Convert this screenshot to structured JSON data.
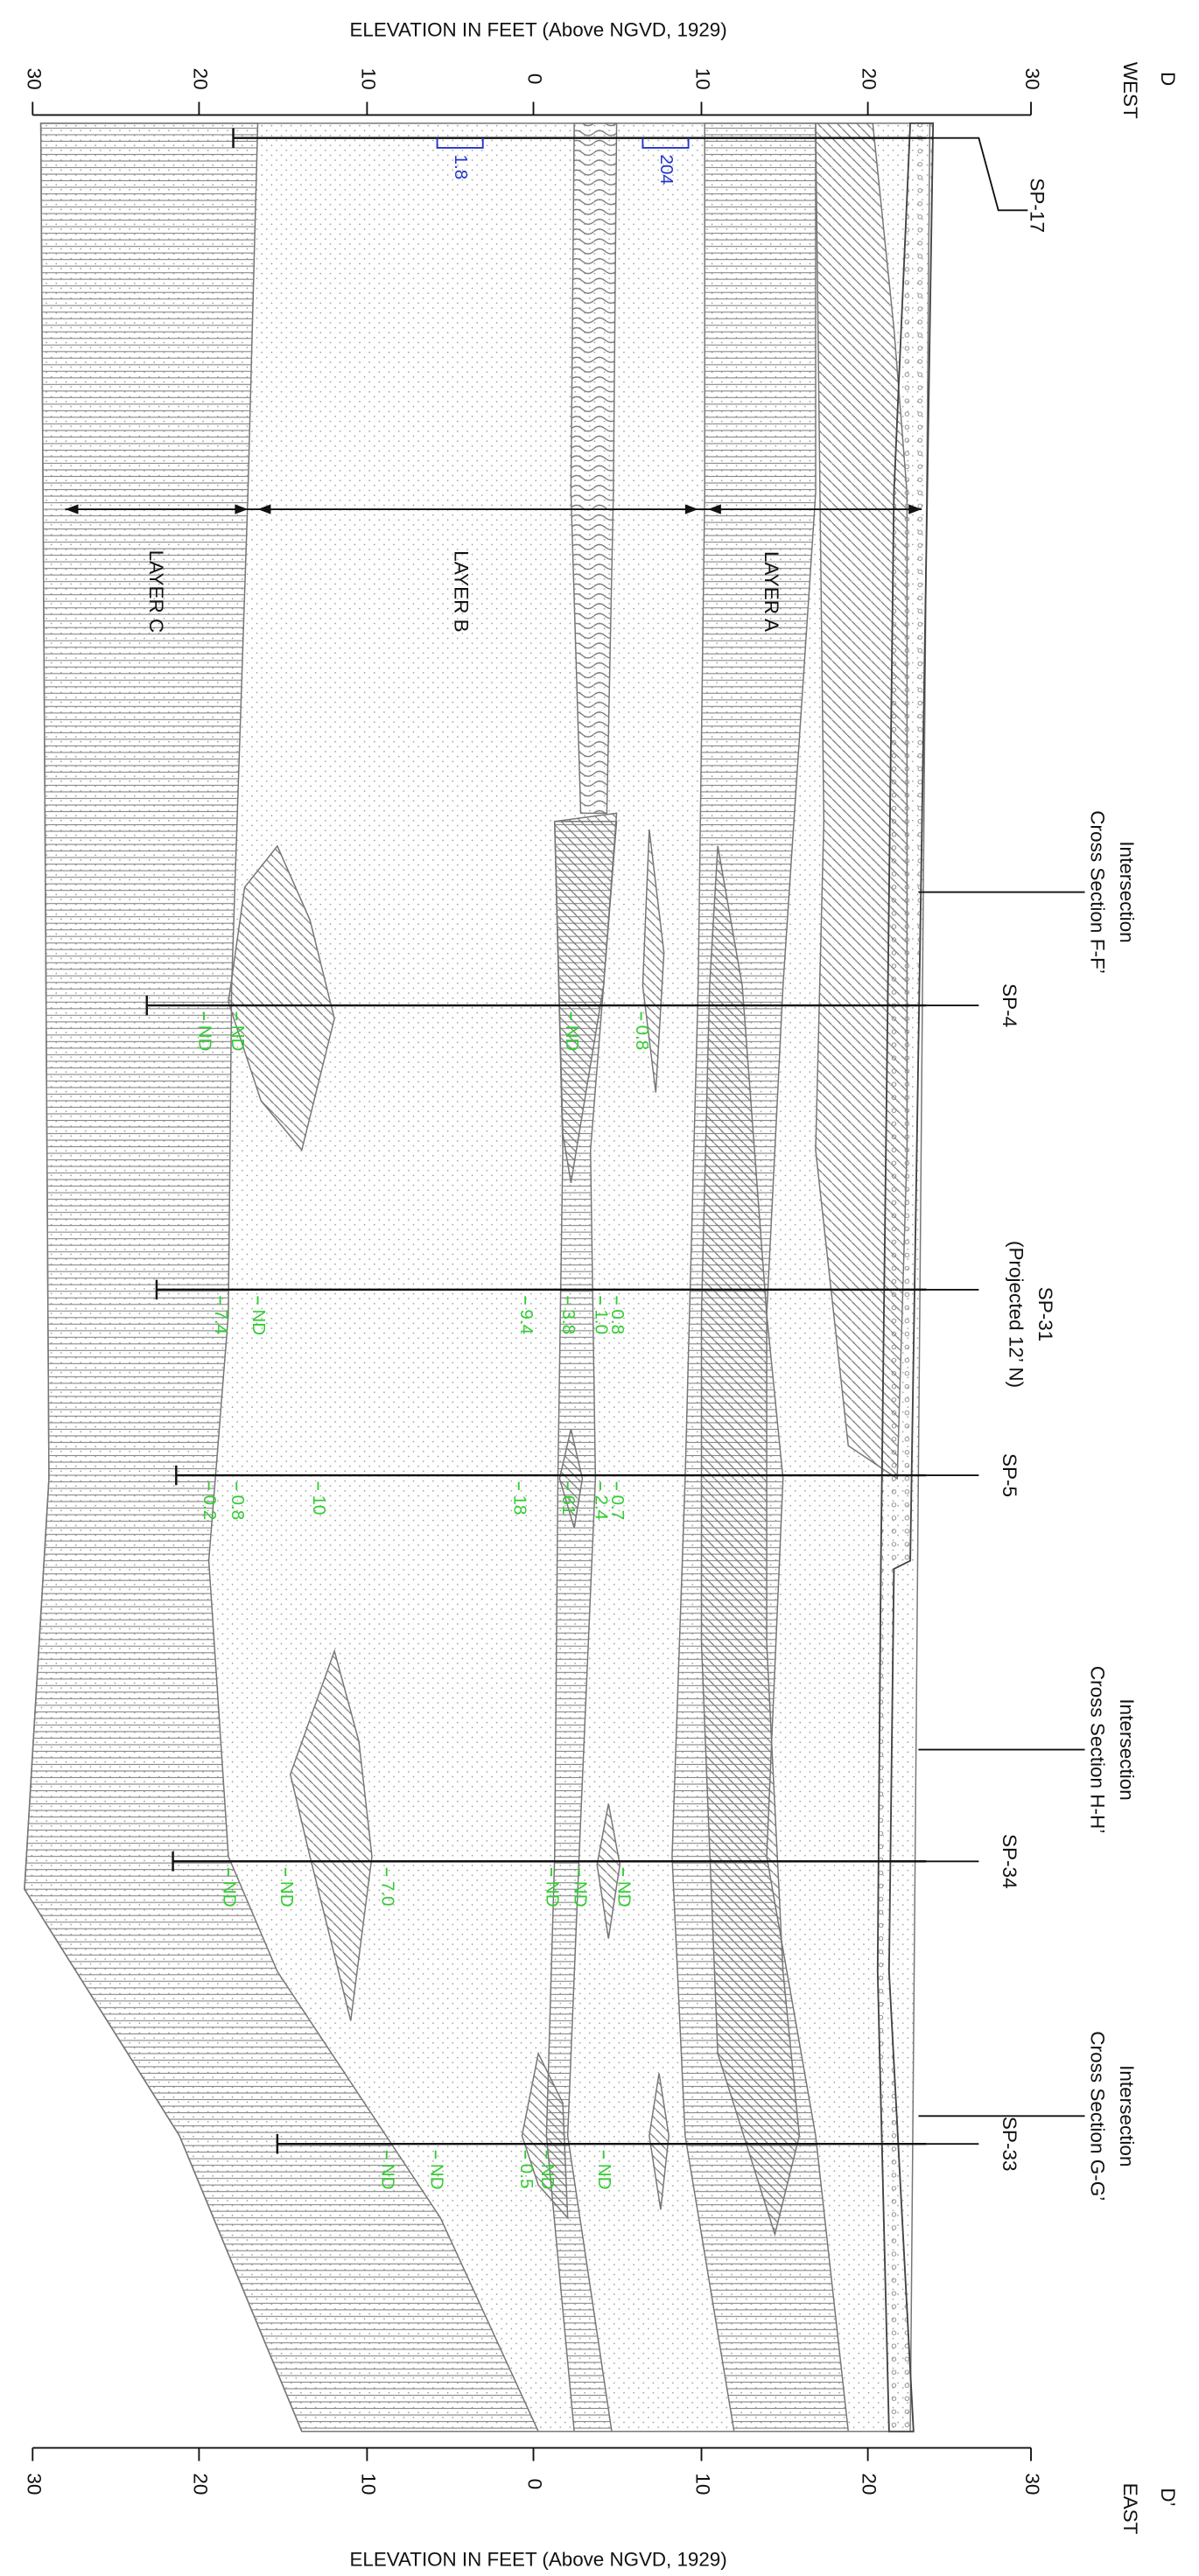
{
  "axis_title": "ELEVATION IN FEET (Above NGVD, 1929)",
  "ticks": [
    "30",
    "20",
    "10",
    "0",
    "10",
    "20",
    "30"
  ],
  "ends": {
    "top": {
      "letter": "D",
      "side": "WEST"
    },
    "bottom": {
      "letter": "D’",
      "side": "EAST"
    }
  },
  "layers": [
    "LAYER C",
    "LAYER B",
    "LAYER A"
  ],
  "intersections": [
    [
      "Intersection",
      "Cross Section F-F’"
    ],
    [
      "Intersection",
      "Cross Section H-H’"
    ],
    [
      "Intersection",
      "Cross Section G-G’"
    ]
  ],
  "borings": [
    {
      "label": [
        "SP-17"
      ],
      "results": [
        "1.8",
        "204"
      ]
    },
    {
      "label": [
        "SP-4"
      ],
      "results": [
        "ND",
        "ND",
        "ND",
        "0.8"
      ]
    },
    {
      "label": [
        "SP-31",
        "(Projected 12’ N)"
      ],
      "results": [
        "7.4",
        "ND",
        "9.4",
        "3.8",
        "1.0",
        "0.8"
      ]
    },
    {
      "label": [
        "SP-5"
      ],
      "results": [
        "0.2",
        "0.8",
        "10",
        "18",
        "61",
        "2.4",
        "0.7"
      ]
    },
    {
      "label": [
        "SP-34"
      ],
      "results": [
        "ND",
        "ND",
        "7.0",
        "ND",
        "ND",
        "ND"
      ]
    },
    {
      "label": [
        "SP-33"
      ],
      "results": [
        "ND",
        "ND",
        "0.5",
        "ND",
        "ND"
      ]
    }
  ]
}
